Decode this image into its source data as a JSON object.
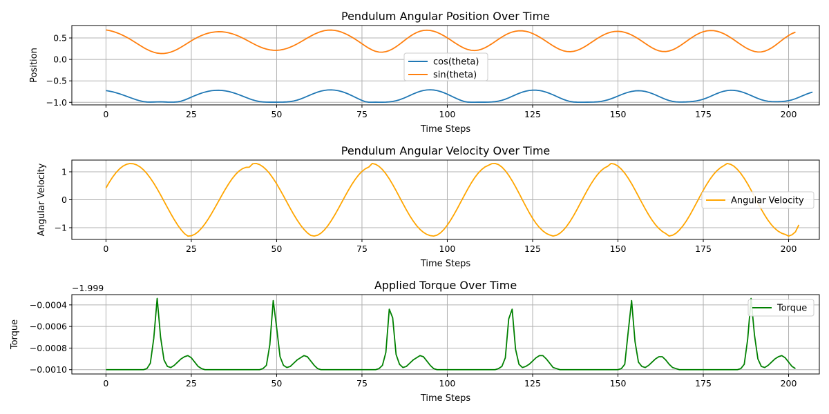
{
  "chart_data": [
    {
      "type": "line",
      "title": "Pendulum Angular Position Over Time",
      "xlabel": "Time Steps",
      "ylabel": "Position",
      "xlim": [
        -10,
        209
      ],
      "ylim": [
        -1.06,
        0.79
      ],
      "xticks": [
        0,
        25,
        50,
        75,
        100,
        125,
        150,
        175,
        200
      ],
      "yticks": [
        -1.0,
        -0.5,
        0.0,
        0.5
      ],
      "ytick_labels": [
        "−1.0",
        "−0.5",
        "0.0",
        "0.5"
      ],
      "offset_label": "",
      "grid": true,
      "legend_placement": "center",
      "series": [
        {
          "name": "cos(theta)",
          "color": "#1f77b4",
          "x_start": 0,
          "x_step": 1,
          "values": [
            -0.7256,
            -0.7395,
            -0.7573,
            -0.7787,
            -0.8031,
            -0.83,
            -0.8586,
            -0.8879,
            -0.9167,
            -0.9436,
            -0.9666,
            -0.9839,
            -0.9929,
            -0.9948,
            -0.9924,
            -0.9893,
            -0.9879,
            -0.9906,
            -0.9946,
            -0.9957,
            -0.9943,
            -0.9885,
            -0.9735,
            -0.9474,
            -0.915,
            -0.8807,
            -0.8465,
            -0.8144,
            -0.7857,
            -0.7614,
            -0.7422,
            -0.7286,
            -0.7209,
            -0.7191,
            -0.7234,
            -0.7334,
            -0.7491,
            -0.7699,
            -0.7952,
            -0.824,
            -0.8548,
            -0.8863,
            -0.9166,
            -0.944,
            -0.9665,
            -0.9825,
            -0.9917,
            -0.9955,
            -0.9966,
            -0.997,
            -0.997,
            -0.9962,
            -0.9944,
            -0.9904,
            -0.9826,
            -0.9692,
            -0.9495,
            -0.9233,
            -0.8923,
            -0.8583,
            -0.824,
            -0.7913,
            -0.7624,
            -0.7389,
            -0.7219,
            -0.7122,
            -0.71,
            -0.7155,
            -0.7284,
            -0.7484,
            -0.7748,
            -0.8066,
            -0.8428,
            -0.8815,
            -0.9207,
            -0.9569,
            -0.9851,
            -0.9983,
            -0.9975,
            -0.9969,
            -0.9973,
            -0.9972,
            -0.9953,
            -0.99,
            -0.9797,
            -0.9634,
            -0.9406,
            -0.9117,
            -0.878,
            -0.8419,
            -0.806,
            -0.773,
            -0.7452,
            -0.7245,
            -0.7119,
            -0.7081,
            -0.7132,
            -0.7268,
            -0.7483,
            -0.7767,
            -0.8104,
            -0.8474,
            -0.8855,
            -0.9223,
            -0.9555,
            -0.981,
            -0.995,
            -0.9983,
            -0.9972,
            -0.9968,
            -0.997,
            -0.9968,
            -0.9952,
            -0.9915,
            -0.9845,
            -0.9725,
            -0.9537,
            -0.9276,
            -0.8956,
            -0.8604,
            -0.825,
            -0.7919,
            -0.7632,
            -0.7405,
            -0.7248,
            -0.7168,
            -0.7169,
            -0.7251,
            -0.7411,
            -0.7641,
            -0.793,
            -0.8262,
            -0.8619,
            -0.8977,
            -0.9311,
            -0.9595,
            -0.9805,
            -0.9925,
            -0.9967,
            -0.9972,
            -0.9972,
            -0.997,
            -0.996,
            -0.9935,
            -0.9884,
            -0.979,
            -0.9642,
            -0.9435,
            -0.9172,
            -0.8868,
            -0.8542,
            -0.8216,
            -0.7913,
            -0.7655,
            -0.7458,
            -0.7336,
            -0.7295,
            -0.734,
            -0.7469,
            -0.7677,
            -0.7953,
            -0.8279,
            -0.8634,
            -0.899,
            -0.9317,
            -0.959,
            -0.9784,
            -0.9893,
            -0.9931,
            -0.9928,
            -0.9903,
            -0.9858,
            -0.9786,
            -0.9672,
            -0.9504,
            -0.9276,
            -0.8988,
            -0.8656,
            -0.8304,
            -0.7961,
            -0.7656,
            -0.7415,
            -0.7256,
            -0.7187,
            -0.721,
            -0.7321,
            -0.7511,
            -0.7769,
            -0.8079,
            -0.842,
            -0.8769,
            -0.9101,
            -0.939,
            -0.9615,
            -0.9762,
            -0.9834,
            -0.9855,
            -0.9847,
            -0.9815,
            -0.9745,
            -0.9619,
            -0.9425,
            -0.9162,
            -0.8846,
            -0.8505,
            -0.8171,
            -0.7872,
            -0.7631
          ]
        },
        {
          "name": "sin(theta)",
          "color": "#ff7f0e",
          "x_start": 0,
          "x_step": 1,
          "values": [
            0.688,
            0.6732,
            0.653,
            0.6273,
            0.5963,
            0.5602,
            0.5193,
            0.4744,
            0.4261,
            0.3757,
            0.3251,
            0.2768,
            0.2331,
            0.1961,
            0.1672,
            0.1475,
            0.1378,
            0.1387,
            0.1499,
            0.1712,
            0.2018,
            0.2402,
            0.285,
            0.3337,
            0.3841,
            0.4336,
            0.48,
            0.5218,
            0.5582,
            0.5885,
            0.6126,
            0.6302,
            0.6414,
            0.646,
            0.6439,
            0.635,
            0.6196,
            0.5978,
            0.57,
            0.5369,
            0.4993,
            0.4586,
            0.4161,
            0.3738,
            0.3334,
            0.2967,
            0.2654,
            0.2405,
            0.223,
            0.2136,
            0.2122,
            0.219,
            0.2338,
            0.2562,
            0.2856,
            0.3211,
            0.3618,
            0.4061,
            0.4525,
            0.4992,
            0.5441,
            0.5853,
            0.621,
            0.6499,
            0.6706,
            0.6823,
            0.6845,
            0.6774,
            0.6612,
            0.6366,
            0.6045,
            0.5659,
            0.5216,
            0.4728,
            0.4204,
            0.3661,
            0.3121,
            0.2618,
            0.2193,
            0.1882,
            0.1709,
            0.1683,
            0.1806,
            0.2069,
            0.2459,
            0.2953,
            0.3524,
            0.4136,
            0.4753,
            0.5335,
            0.5847,
            0.6264,
            0.6569,
            0.6753,
            0.6813,
            0.6752,
            0.6579,
            0.6305,
            0.5945,
            0.5515,
            0.5031,
            0.4515,
            0.3987,
            0.3474,
            0.3003,
            0.2604,
            0.2305,
            0.2125,
            0.2074,
            0.2157,
            0.2369,
            0.2699,
            0.3127,
            0.3625,
            0.4161,
            0.4704,
            0.5223,
            0.5689,
            0.6079,
            0.6378,
            0.6578,
            0.6674,
            0.6665,
            0.6553,
            0.6342,
            0.6041,
            0.566,
            0.5215,
            0.4722,
            0.4199,
            0.367,
            0.316,
            0.2697,
            0.2308,
            0.2017,
            0.1843,
            0.1798,
            0.1883,
            0.2094,
            0.2418,
            0.2836,
            0.3323,
            0.385,
            0.4388,
            0.4909,
            0.5388,
            0.5802,
            0.6135,
            0.6375,
            0.6515,
            0.6551,
            0.6484,
            0.6316,
            0.6052,
            0.5701,
            0.5274,
            0.4787,
            0.4259,
            0.3716,
            0.3187,
            0.2705,
            0.2304,
            0.2012,
            0.1851,
            0.1834,
            0.1962,
            0.2226,
            0.2607,
            0.308,
            0.3616,
            0.4184,
            0.4752,
            0.5288,
            0.5764,
            0.6159,
            0.6458,
            0.6651,
            0.6735,
            0.6708,
            0.6572,
            0.6332,
            0.5996,
            0.5576,
            0.5089,
            0.4556,
            0.4,
            0.3449,
            0.2931,
            0.2476,
            0.211,
            0.1855,
            0.1731,
            0.1752,
            0.1922,
            0.2235,
            0.2676,
            0.3219,
            0.3826,
            0.4453,
            0.5053,
            0.5588,
            0.6027,
            0.6352
          ]
        }
      ]
    },
    {
      "type": "line",
      "title": "Pendulum Angular Velocity Over Time",
      "xlabel": "Time Steps",
      "ylabel": "Angular Velocity",
      "xlim": [
        -10,
        209
      ],
      "ylim": [
        -1.42,
        1.42
      ],
      "xticks": [
        0,
        25,
        50,
        75,
        100,
        125,
        150,
        175,
        200
      ],
      "yticks": [
        -1,
        0,
        1
      ],
      "ytick_labels": [
        "−1",
        "0",
        "1"
      ],
      "offset_label": "",
      "grid": true,
      "legend_placement": "right",
      "series": [
        {
          "name": "Angular Velocity",
          "color": "#ffa500",
          "x_start": 0,
          "x_step": 1,
          "values": [
            0.42,
            0.6332,
            0.8204,
            0.9794,
            1.1082,
            1.2049,
            1.2676,
            1.2954,
            1.2886,
            1.2478,
            1.1741,
            1.0693,
            0.9354,
            0.7753,
            0.5924,
            0.3906,
            0.1745,
            -0.0505,
            -0.2776,
            -0.4999,
            -0.7107,
            -0.9036,
            -1.0724,
            -1.2112,
            -1.3009,
            -1.2905,
            -1.2375,
            -1.1458,
            -1.0196,
            -0.8633,
            -0.682,
            -0.4813,
            -0.2676,
            -0.0477,
            0.1714,
            0.3832,
            0.5809,
            0.7581,
            0.9089,
            1.0285,
            1.113,
            1.1595,
            1.1664,
            1.288,
            1.3,
            1.26,
            1.18,
            1.07,
            0.93,
            0.76,
            0.57,
            0.36,
            0.14,
            -0.085,
            -0.31,
            -0.525,
            -0.725,
            -0.905,
            -1.06,
            -1.185,
            -1.275,
            -1.3,
            -1.27,
            -1.195,
            -1.08,
            -0.93,
            -0.75,
            -0.55,
            -0.335,
            -0.11,
            0.115,
            0.335,
            0.54,
            0.725,
            0.885,
            1.015,
            1.11,
            1.17,
            1.3,
            1.27,
            1.195,
            1.08,
            0.93,
            0.75,
            0.545,
            0.325,
            0.095,
            -0.135,
            -0.36,
            -0.57,
            -0.76,
            -0.925,
            -1.06,
            -1.165,
            -1.24,
            -1.285,
            -1.3,
            -1.265,
            -1.185,
            -1.065,
            -0.91,
            -0.725,
            -0.52,
            -0.3,
            -0.07,
            0.16,
            0.385,
            0.595,
            0.785,
            0.945,
            1.075,
            1.17,
            1.23,
            1.29,
            1.3,
            1.26,
            1.17,
            1.04,
            0.875,
            0.68,
            0.465,
            0.235,
            0.0,
            -0.235,
            -0.46,
            -0.665,
            -0.845,
            -0.995,
            -1.115,
            -1.205,
            -1.26,
            -1.3,
            -1.27,
            -1.2,
            -1.09,
            -0.945,
            -0.77,
            -0.57,
            -0.35,
            -0.12,
            0.11,
            0.335,
            0.545,
            0.735,
            0.9,
            1.035,
            1.135,
            1.2,
            1.3,
            1.275,
            1.205,
            1.095,
            0.95,
            0.775,
            0.575,
            0.355,
            0.125,
            -0.105,
            -0.33,
            -0.54,
            -0.73,
            -0.895,
            -1.03,
            -1.135,
            -1.21,
            -1.3,
            -1.27,
            -1.2,
            -1.085,
            -0.94,
            -0.765,
            -0.565,
            -0.345,
            -0.115,
            0.115,
            0.34,
            0.55,
            0.74,
            0.905,
            1.04,
            1.145,
            1.22,
            1.3,
            1.27,
            1.2,
            1.085,
            0.94,
            0.765,
            0.565,
            0.345,
            0.115,
            -0.115,
            -0.34,
            -0.55,
            -0.74,
            -0.9,
            -1.03,
            -1.13,
            -1.2,
            -1.24,
            -1.3,
            -1.255,
            -1.15,
            -0.9
          ]
        }
      ]
    },
    {
      "type": "line",
      "title": "Applied Torque Over Time",
      "xlabel": "Time Steps",
      "ylabel": "Torque",
      "xlim": [
        -10,
        209
      ],
      "ylim": [
        -0.00104,
        -0.000305
      ],
      "xticks": [
        0,
        25,
        50,
        75,
        100,
        125,
        150,
        175,
        200
      ],
      "yticks": [
        -0.001,
        -0.0008,
        -0.0006,
        -0.0004
      ],
      "ytick_labels": [
        "−0.0010",
        "−0.0008",
        "−0.0006",
        "−0.0004"
      ],
      "offset_label": "−1.999",
      "grid": true,
      "legend_placement": "upper right",
      "series": [
        {
          "name": "Torque",
          "color": "#008000",
          "x_start": 0,
          "x_step": 1,
          "values": [
            -0.001,
            -0.001,
            -0.001,
            -0.001,
            -0.001,
            -0.001,
            -0.001,
            -0.001,
            -0.001,
            -0.001,
            -0.001,
            -0.001,
            -0.00099,
            -0.00094,
            -0.00071,
            -0.00034,
            -0.0007,
            -0.00091,
            -0.00097,
            -0.00098,
            -0.00096,
            -0.00093,
            -0.0009,
            -0.00088,
            -0.00087,
            -0.00089,
            -0.00093,
            -0.00097,
            -0.00099,
            -0.001,
            -0.001,
            -0.001,
            -0.001,
            -0.001,
            -0.001,
            -0.001,
            -0.001,
            -0.001,
            -0.001,
            -0.001,
            -0.001,
            -0.001,
            -0.001,
            -0.001,
            -0.001,
            -0.001,
            -0.00099,
            -0.00096,
            -0.00077,
            -0.00036,
            -0.00061,
            -0.00088,
            -0.00096,
            -0.00098,
            -0.00097,
            -0.00094,
            -0.00091,
            -0.00089,
            -0.00087,
            -0.00088,
            -0.00092,
            -0.00096,
            -0.00099,
            -0.001,
            -0.001,
            -0.001,
            -0.001,
            -0.001,
            -0.001,
            -0.001,
            -0.001,
            -0.001,
            -0.001,
            -0.001,
            -0.001,
            -0.001,
            -0.001,
            -0.001,
            -0.001,
            -0.001,
            -0.00099,
            -0.00096,
            -0.00084,
            -0.00044,
            -0.00052,
            -0.00086,
            -0.00095,
            -0.00098,
            -0.00097,
            -0.00094,
            -0.00091,
            -0.00089,
            -0.00087,
            -0.00088,
            -0.00092,
            -0.00096,
            -0.00099,
            -0.001,
            -0.001,
            -0.001,
            -0.001,
            -0.001,
            -0.001,
            -0.001,
            -0.001,
            -0.001,
            -0.001,
            -0.001,
            -0.001,
            -0.001,
            -0.001,
            -0.001,
            -0.001,
            -0.001,
            -0.001,
            -0.00099,
            -0.00097,
            -0.00089,
            -0.00053,
            -0.00044,
            -0.00081,
            -0.00095,
            -0.00098,
            -0.00097,
            -0.00095,
            -0.00092,
            -0.00089,
            -0.00087,
            -0.00087,
            -0.0009,
            -0.00094,
            -0.00098,
            -0.00099,
            -0.001,
            -0.001,
            -0.001,
            -0.001,
            -0.001,
            -0.001,
            -0.001,
            -0.001,
            -0.001,
            -0.001,
            -0.001,
            -0.001,
            -0.001,
            -0.001,
            -0.001,
            -0.001,
            -0.001,
            -0.001,
            -0.00099,
            -0.00095,
            -0.00065,
            -0.00036,
            -0.00074,
            -0.00093,
            -0.00097,
            -0.00098,
            -0.00096,
            -0.00093,
            -0.0009,
            -0.00088,
            -0.00088,
            -0.00091,
            -0.00095,
            -0.00098,
            -0.00099,
            -0.001,
            -0.001,
            -0.001,
            -0.001,
            -0.001,
            -0.001,
            -0.001,
            -0.001,
            -0.001,
            -0.001,
            -0.001,
            -0.001,
            -0.001,
            -0.001,
            -0.001,
            -0.001,
            -0.001,
            -0.001,
            -0.00099,
            -0.00095,
            -0.00072,
            -0.00034,
            -0.00068,
            -0.0009,
            -0.00097,
            -0.00098,
            -0.00096,
            -0.00093,
            -0.0009,
            -0.00088,
            -0.00087,
            -0.00089,
            -0.00093,
            -0.00097,
            -0.00099
          ]
        }
      ]
    }
  ]
}
